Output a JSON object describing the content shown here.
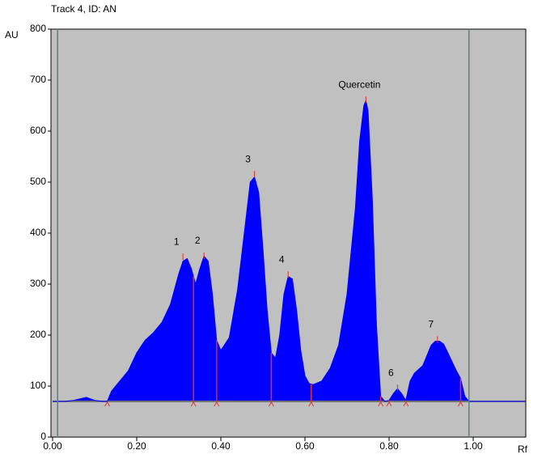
{
  "chart_data": {
    "type": "area",
    "title": "Track 4, ID: AN",
    "y_label": "AU",
    "x_label": "Rf",
    "xlim": [
      0,
      1.125
    ],
    "ylim": [
      0,
      800
    ],
    "xticks": [
      {
        "value": 0,
        "label": "0.00"
      },
      {
        "value": 0.2,
        "label": "0.20"
      },
      {
        "value": 0.4,
        "label": "0.40"
      },
      {
        "value": 0.6,
        "label": "0.60"
      },
      {
        "value": 0.8,
        "label": "0.80"
      },
      {
        "value": 1.0,
        "label": "1.00"
      }
    ],
    "yticks": [
      0,
      100,
      200,
      300,
      400,
      500,
      600,
      700,
      800
    ],
    "baseline": 70,
    "track_limits": [
      0.012,
      0.99
    ],
    "color": "#0000ff",
    "background": "#c0c0c0",
    "x": [
      0,
      0.03,
      0.05,
      0.08,
      0.1,
      0.12,
      0.13,
      0.14,
      0.16,
      0.18,
      0.2,
      0.22,
      0.24,
      0.26,
      0.28,
      0.3,
      0.31,
      0.32,
      0.33,
      0.34,
      0.35,
      0.36,
      0.37,
      0.38,
      0.39,
      0.4,
      0.42,
      0.44,
      0.46,
      0.47,
      0.48,
      0.49,
      0.5,
      0.51,
      0.52,
      0.53,
      0.54,
      0.55,
      0.56,
      0.57,
      0.58,
      0.59,
      0.6,
      0.61,
      0.62,
      0.64,
      0.66,
      0.68,
      0.7,
      0.72,
      0.73,
      0.74,
      0.745,
      0.75,
      0.76,
      0.77,
      0.78,
      0.79,
      0.8,
      0.81,
      0.82,
      0.83,
      0.84,
      0.85,
      0.86,
      0.88,
      0.9,
      0.91,
      0.92,
      0.93,
      0.94,
      0.96,
      0.97,
      0.98,
      0.99,
      1.125
    ],
    "values": [
      70,
      70,
      72,
      78,
      72,
      70,
      70,
      90,
      110,
      130,
      165,
      190,
      205,
      225,
      260,
      320,
      345,
      350,
      330,
      300,
      330,
      355,
      345,
      280,
      190,
      170,
      195,
      290,
      430,
      500,
      510,
      480,
      370,
      250,
      165,
      155,
      200,
      280,
      315,
      310,
      250,
      170,
      120,
      105,
      103,
      110,
      135,
      180,
      280,
      450,
      580,
      650,
      660,
      640,
      470,
      220,
      80,
      70,
      72,
      85,
      95,
      85,
      72,
      110,
      125,
      140,
      180,
      188,
      188,
      182,
      165,
      130,
      115,
      80,
      70,
      70
    ],
    "peak_boundaries": [
      0.13,
      0.335,
      0.39,
      0.52,
      0.615,
      0.78,
      0.8,
      0.84,
      0.97
    ],
    "peaks": [
      {
        "label": "1",
        "x": 0.31,
        "y": 360
      },
      {
        "label": "2",
        "x": 0.36,
        "y": 362
      },
      {
        "label": "3",
        "x": 0.48,
        "y": 522
      },
      {
        "label": "4",
        "x": 0.56,
        "y": 325
      },
      {
        "label": "Quercetin",
        "x": 0.745,
        "y": 668
      },
      {
        "label": "6",
        "x": 0.82,
        "y": 103
      },
      {
        "label": "7",
        "x": 0.915,
        "y": 198
      }
    ]
  }
}
